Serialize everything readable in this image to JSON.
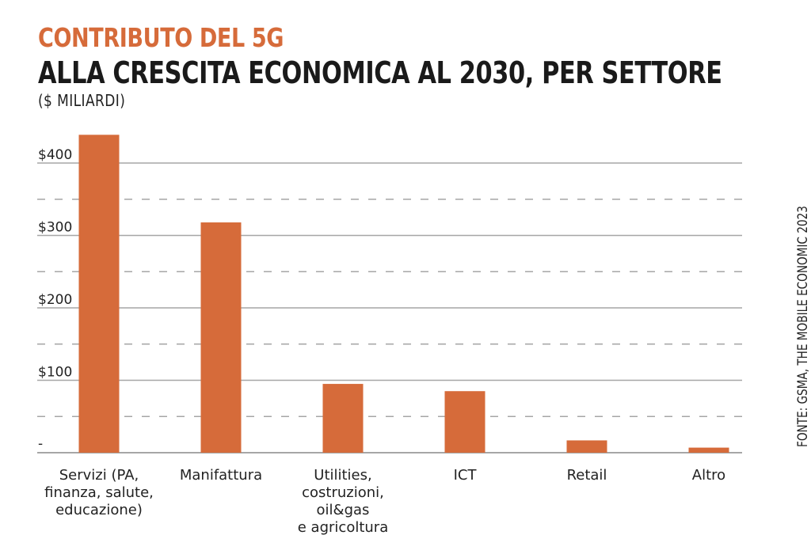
{
  "header": {
    "title_line1": "CONTRIBUTO DEL 5G",
    "title_line2": "ALLA CRESCITA ECONOMICA AL 2030, PER SETTORE",
    "subtitle": "($ MILIARDI)"
  },
  "source": "FONTE: GSMA, THE MOBILE ECONOMIC 2023",
  "colors": {
    "bar": "#d66b3a",
    "title_accent": "#d66b3a",
    "title_dark": "#1a1a1a",
    "grid": "#a6a6a6"
  },
  "chart_data": {
    "type": "bar",
    "title": "CONTRIBUTO DEL 5G ALLA CRESCITA ECONOMICA AL 2030, PER SETTORE",
    "subtitle": "($ MILIARDI)",
    "xlabel": "",
    "ylabel": "$ miliardi",
    "ylim": [
      0,
      400
    ],
    "grid": true,
    "legend": "none",
    "yticks": [
      {
        "value": 0,
        "label": "-"
      },
      {
        "value": 100,
        "label": "$100"
      },
      {
        "value": 200,
        "label": "$200"
      },
      {
        "value": 300,
        "label": "$300"
      },
      {
        "value": 400,
        "label": "$400"
      }
    ],
    "minor_gridlines": [
      50,
      150,
      250,
      350
    ],
    "categories": [
      [
        "Servizi (PA,",
        "finanza, salute,",
        "educazione)"
      ],
      [
        "Manifattura"
      ],
      [
        "Utilities,",
        "costruzioni,",
        "oil&gas",
        "e agricoltura"
      ],
      [
        "ICT"
      ],
      [
        "Retail"
      ],
      [
        "Altro"
      ]
    ],
    "values": [
      439,
      318,
      95,
      85,
      17,
      7
    ]
  }
}
